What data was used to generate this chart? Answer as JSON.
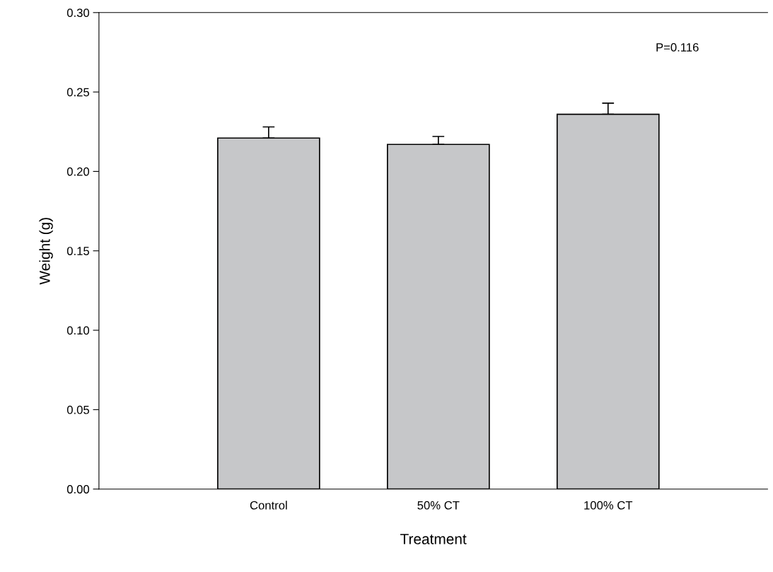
{
  "chart_data": {
    "type": "bar",
    "xlabel": "Treatment",
    "ylabel": "Weight (g)",
    "categories": [
      "Control",
      "50% CT",
      "100% CT"
    ],
    "values": [
      0.221,
      0.217,
      0.236
    ],
    "errors": [
      [
        0.221,
        0.228
      ],
      [
        0.217,
        0.222
      ],
      [
        0.236,
        0.243
      ]
    ],
    "color": "#c6c7c9",
    "ylim": [
      0,
      0.3
    ],
    "yticks": [
      {
        "value": 0,
        "label": "0.00"
      },
      {
        "value": 0.05,
        "label": "0.05"
      },
      {
        "value": 0.1,
        "label": "0.10"
      },
      {
        "value": 0.15,
        "label": "0.15"
      },
      {
        "value": 0.2,
        "label": "0.20"
      },
      {
        "value": 0.25,
        "label": "0.25"
      },
      {
        "value": 0.3,
        "label": "0.30"
      }
    ],
    "annotations": [
      "P=0.116"
    ],
    "grid": false,
    "legend": false
  }
}
